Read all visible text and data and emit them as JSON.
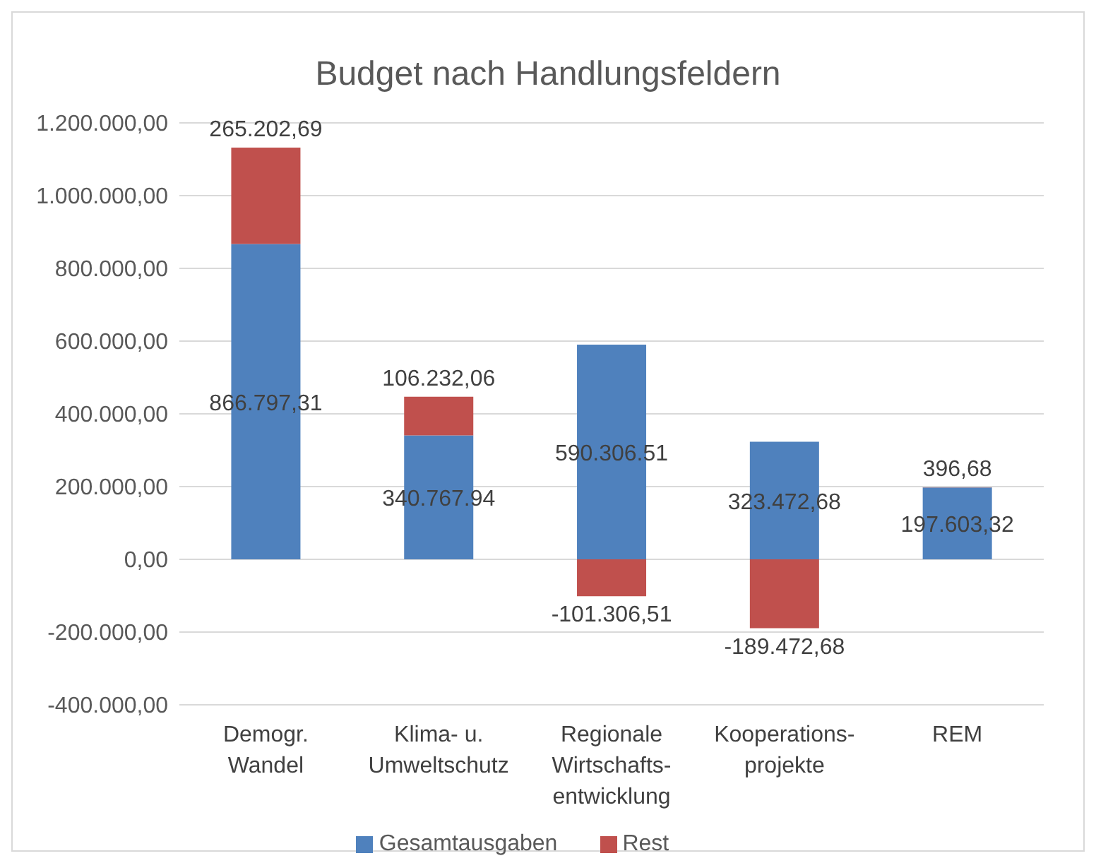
{
  "chart_data": {
    "type": "bar",
    "title": "Budget nach Handlungsfeldern",
    "stacked": true,
    "categories": [
      "Demogr.\nWandel",
      "Klima- u.\nUmweltschutz",
      "Regionale\nWirtschafts-\nentwicklung",
      "Kooperations-\nprojekte",
      "REM"
    ],
    "series": [
      {
        "name": "Gesamtausgaben",
        "color": "#4f81bd",
        "values": [
          866797.31,
          340767.94,
          590306.51,
          323472.68,
          197603.32
        ],
        "value_labels": [
          "866.797,31",
          "340.767.94",
          "590.306.51",
          "323.472,68",
          "197.603,32"
        ]
      },
      {
        "name": "Rest",
        "color": "#c0504d",
        "values": [
          265202.69,
          106232.06,
          -101306.51,
          -189472.68,
          396.68
        ],
        "value_labels": [
          "265.202,69",
          "106.232,06",
          "-101.306,51",
          "-189.472,68",
          "396,68"
        ]
      }
    ],
    "ylim": [
      -400000,
      1200000
    ],
    "yticks": [
      {
        "value": -400000,
        "label": "-400.000,00"
      },
      {
        "value": -200000,
        "label": "-200.000,00"
      },
      {
        "value": 0,
        "label": "0,00"
      },
      {
        "value": 200000,
        "label": "200.000,00"
      },
      {
        "value": 400000,
        "label": "400.000,00"
      },
      {
        "value": 600000,
        "label": "600.000,00"
      },
      {
        "value": 800000,
        "label": "800.000,00"
      },
      {
        "value": 1000000,
        "label": "1.000.000,00"
      },
      {
        "value": 1200000,
        "label": "1.200.000,00"
      }
    ],
    "grid": "y",
    "legend": "bottom"
  }
}
